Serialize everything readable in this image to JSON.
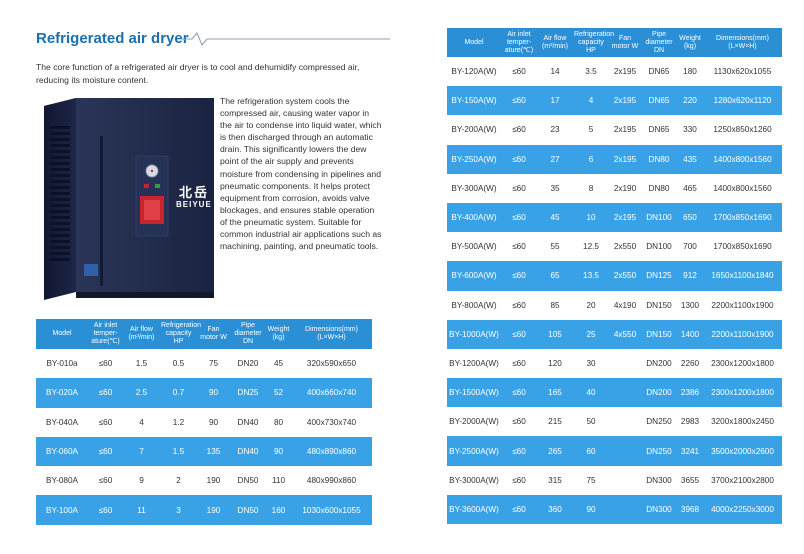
{
  "title": "Refrigerated air dryer",
  "intro": "The core function of a refrigerated air dryer is to cool and dehumidify compressed air, reducing its moisture content.",
  "description": "The refrigeration system cools the compressed air, causing water vapor in the air to condense into liquid water, which is then discharged through an automatic drain. This significantly lowers the dew point of the air supply and prevents moisture from condensing in pipelines and pneumatic components. It helps protect equipment from corrosion, avoids valve blockages, and ensures stable operation of the pneumatic system. Suitable for common industrial air applications such as machining, painting, and pneumatic tools.",
  "machine": {
    "brand_cn": "北岳",
    "brand_en": "BEIYUE",
    "colors": {
      "body": "#1f2a4a",
      "accent": "#c8242b"
    }
  },
  "table_headers": [
    "Model",
    "Air inlet temper-ature(℃)",
    "Air flow (m³/min)",
    "Refrigeration capacity HP",
    "Fan motor W",
    "Pipe diameter DN",
    "Weight (kg)",
    "Dimensions(mm) (L×W×H)"
  ],
  "left_rows": [
    [
      "BY-010a",
      "≤60",
      "1.5",
      "0.5",
      "75",
      "DN20",
      "45",
      "320x590x650"
    ],
    [
      "BY-020A",
      "≤60",
      "2.5",
      "0.7",
      "90",
      "DN25",
      "52",
      "400x660x740"
    ],
    [
      "BY-040A",
      "≤60",
      "4",
      "1.2",
      "90",
      "DN40",
      "80",
      "400x730x740"
    ],
    [
      "BY-060A",
      "≤60",
      "7",
      "1.5",
      "135",
      "DN40",
      "90",
      "480x890x860"
    ],
    [
      "BY-080A",
      "≤60",
      "9",
      "2",
      "190",
      "DN50",
      "110",
      "480x990x860"
    ],
    [
      "BY-100A",
      "≤60",
      "11",
      "3",
      "190",
      "DN50",
      "160",
      "1030x600x1055"
    ]
  ],
  "right_rows": [
    [
      "BY-120A(W)",
      "≤60",
      "14",
      "3.5",
      "2x195",
      "DN65",
      "180",
      "1130x620x1055"
    ],
    [
      "BY-150A(W)",
      "≤60",
      "17",
      "4",
      "2x195",
      "DN65",
      "220",
      "1280x620x1120"
    ],
    [
      "BY-200A(W)",
      "≤60",
      "23",
      "5",
      "2x195",
      "DN65",
      "330",
      "1250x850x1260"
    ],
    [
      "BY-250A(W)",
      "≤60",
      "27",
      "6",
      "2x195",
      "DN80",
      "435",
      "1400x800x1560"
    ],
    [
      "BY-300A(W)",
      "≤60",
      "35",
      "8",
      "2x190",
      "DN80",
      "465",
      "1400x800x1560"
    ],
    [
      "BY-400A(W)",
      "≤60",
      "45",
      "10",
      "2x195",
      "DN100",
      "650",
      "1700x850x1690"
    ],
    [
      "BY-500A(W)",
      "≤60",
      "55",
      "12.5",
      "2x550",
      "DN100",
      "700",
      "1700x850x1690"
    ],
    [
      "BY-600A(W)",
      "≤60",
      "65",
      "13.5",
      "2x550",
      "DN125",
      "912",
      "1650x1100x1840"
    ],
    [
      "BY-800A(W)",
      "≤60",
      "85",
      "20",
      "4x190",
      "DN150",
      "1300",
      "2200x1100x1900"
    ],
    [
      "BY-1000A(W)",
      "≤60",
      "105",
      "25",
      "4x550",
      "DN150",
      "1400",
      "2200x1100x1900"
    ],
    [
      "BY-1200A(W)",
      "≤60",
      "120",
      "30",
      "",
      "DN200",
      "2260",
      "2300x1200x1800"
    ],
    [
      "BY-1500A(W)",
      "≤60",
      "165",
      "40",
      "",
      "DN200",
      "2386",
      "2300x1200x1800"
    ],
    [
      "BY-2000A(W)",
      "≤60",
      "215",
      "50",
      "",
      "DN250",
      "2983",
      "3200x1800x2450"
    ],
    [
      "BY-2500A(W)",
      "≤60",
      "265",
      "60",
      "",
      "DN250",
      "3241",
      "3500x2000x2600"
    ],
    [
      "BY-3000A(W)",
      "≤60",
      "315",
      "75",
      "",
      "DN300",
      "3655",
      "3700x2100x2800"
    ],
    [
      "BY-3600A(W)",
      "≤60",
      "360",
      "90",
      "",
      "DN300",
      "3968",
      "4000x2250x3000"
    ]
  ]
}
